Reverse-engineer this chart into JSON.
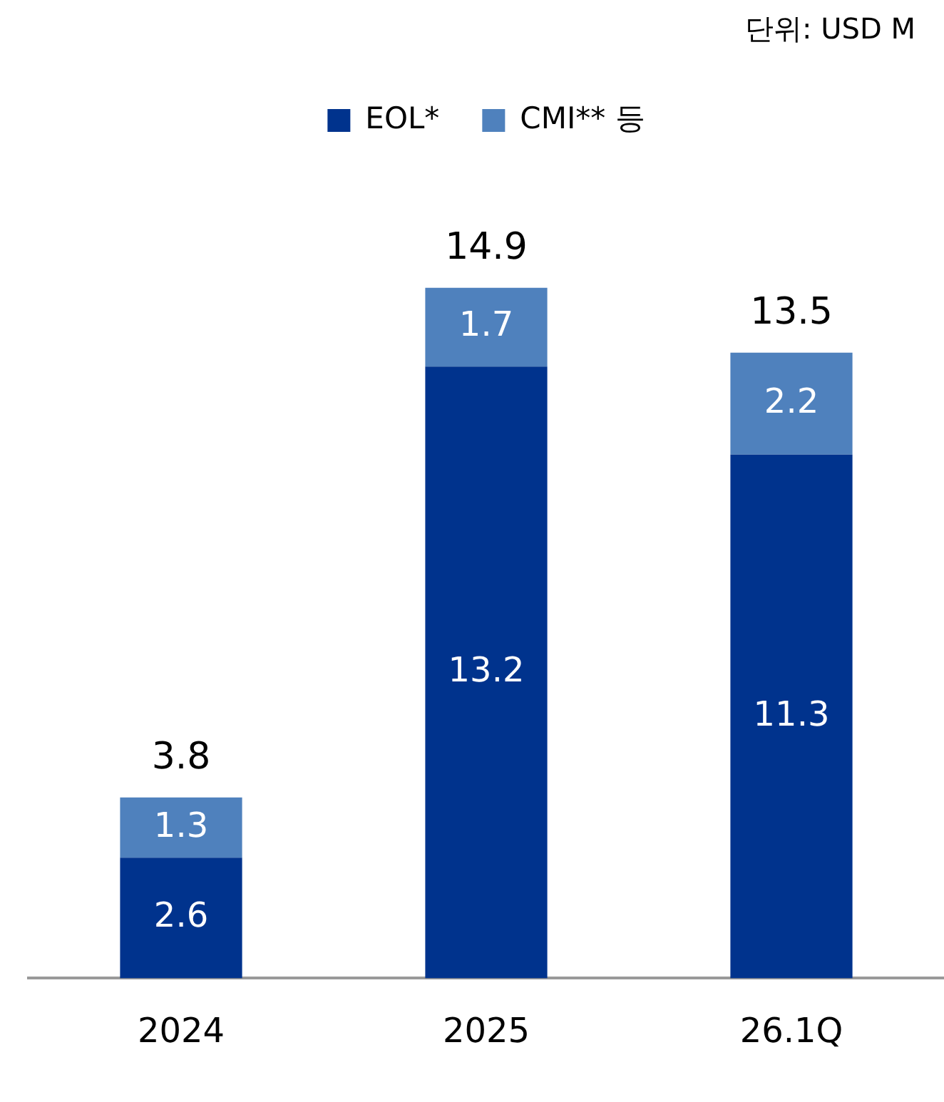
{
  "chart_data": {
    "type": "bar",
    "stacked": true,
    "categories": [
      "2024",
      "2025",
      "26.1Q"
    ],
    "series": [
      {
        "name": "EOL*",
        "color": "#00338d",
        "values": [
          2.6,
          13.2,
          11.3
        ]
      },
      {
        "name": "CMI** 등",
        "color": "#4f81bd",
        "values": [
          1.3,
          1.7,
          2.2
        ]
      }
    ],
    "totals": [
      "3.8",
      "14.9",
      "13.5"
    ],
    "data_labels": true,
    "legend": "top",
    "annotations": [
      "단위: USD M"
    ]
  }
}
